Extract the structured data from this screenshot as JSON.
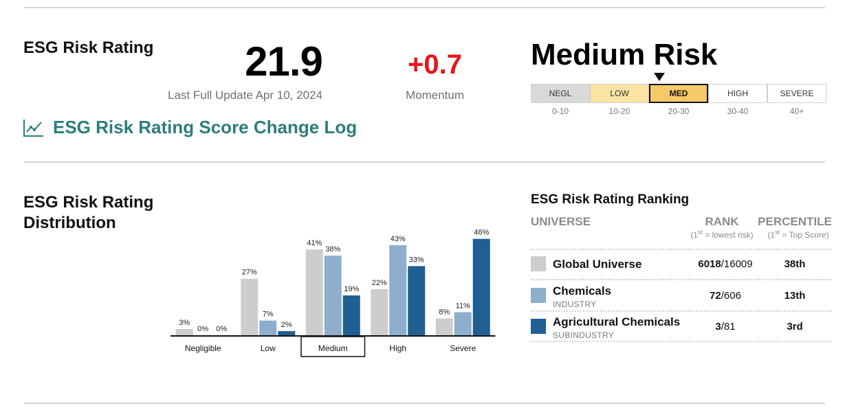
{
  "summary": {
    "title": "ESG Risk Rating",
    "score": "21.9",
    "last_update": "Last Full Update Apr 10, 2024",
    "momentum_value": "+0.7",
    "momentum_label": "Momentum",
    "risk_category": "Medium Risk",
    "changelog_link": "ESG Risk Rating Score Change Log",
    "momentum_color": "#e8141b",
    "link_color": "#2c7d7a"
  },
  "risk_scale": {
    "segments": [
      {
        "label": "NEGL",
        "range": "0-10",
        "color": "#d9d9d9"
      },
      {
        "label": "LOW",
        "range": "10-20",
        "color": "#fbe3a3"
      },
      {
        "label": "MED",
        "range": "20-30",
        "color": "#f6c968"
      },
      {
        "label": "HIGH",
        "range": "30-40",
        "color": "#ffffff"
      },
      {
        "label": "SEVERE",
        "range": "40+",
        "color": "#ffffff"
      }
    ],
    "active_index": 2
  },
  "distribution": {
    "title_line1": "ESG Risk Rating",
    "title_line2": "Distribution",
    "selected_category": "Medium"
  },
  "chart_data": {
    "type": "bar",
    "categories": [
      "Negligible",
      "Low",
      "Medium",
      "High",
      "Severe"
    ],
    "series": [
      {
        "name": "Global Universe",
        "color": "#cdcdcd",
        "values": [
          3,
          27,
          41,
          22,
          8
        ]
      },
      {
        "name": "Chemicals",
        "color": "#8daecd",
        "values": [
          0,
          7,
          38,
          43,
          11
        ]
      },
      {
        "name": "Agricultural Chemicals",
        "color": "#1f5f92",
        "values": [
          0,
          2,
          19,
          33,
          46
        ]
      }
    ],
    "value_suffix": "%",
    "ylim": [
      0,
      50
    ]
  },
  "ranking": {
    "title": "ESG Risk Rating Ranking",
    "col_universe": "UNIVERSE",
    "col_rank": "RANK",
    "col_percentile": "PERCENTILE",
    "rank_note_pre": "(1",
    "rank_note_sup": "st",
    "rank_note_post": " = lowest risk)",
    "pct_note_pre": "(1",
    "pct_note_sup": "st",
    "pct_note_post": " = Top Score)",
    "rows": [
      {
        "name": "Global Universe",
        "sub": "",
        "rank": "6018",
        "total": "/16009",
        "percentile": "38th",
        "color": "#cdcdcd"
      },
      {
        "name": "Chemicals",
        "sub": "INDUSTRY",
        "rank": "72",
        "total": "/606",
        "percentile": "13th",
        "color": "#8daecd"
      },
      {
        "name": "Agricultural Chemicals",
        "sub": "SUBINDUSTRY",
        "rank": "3",
        "total": "/81",
        "percentile": "3rd",
        "color": "#1f5f92"
      }
    ]
  }
}
